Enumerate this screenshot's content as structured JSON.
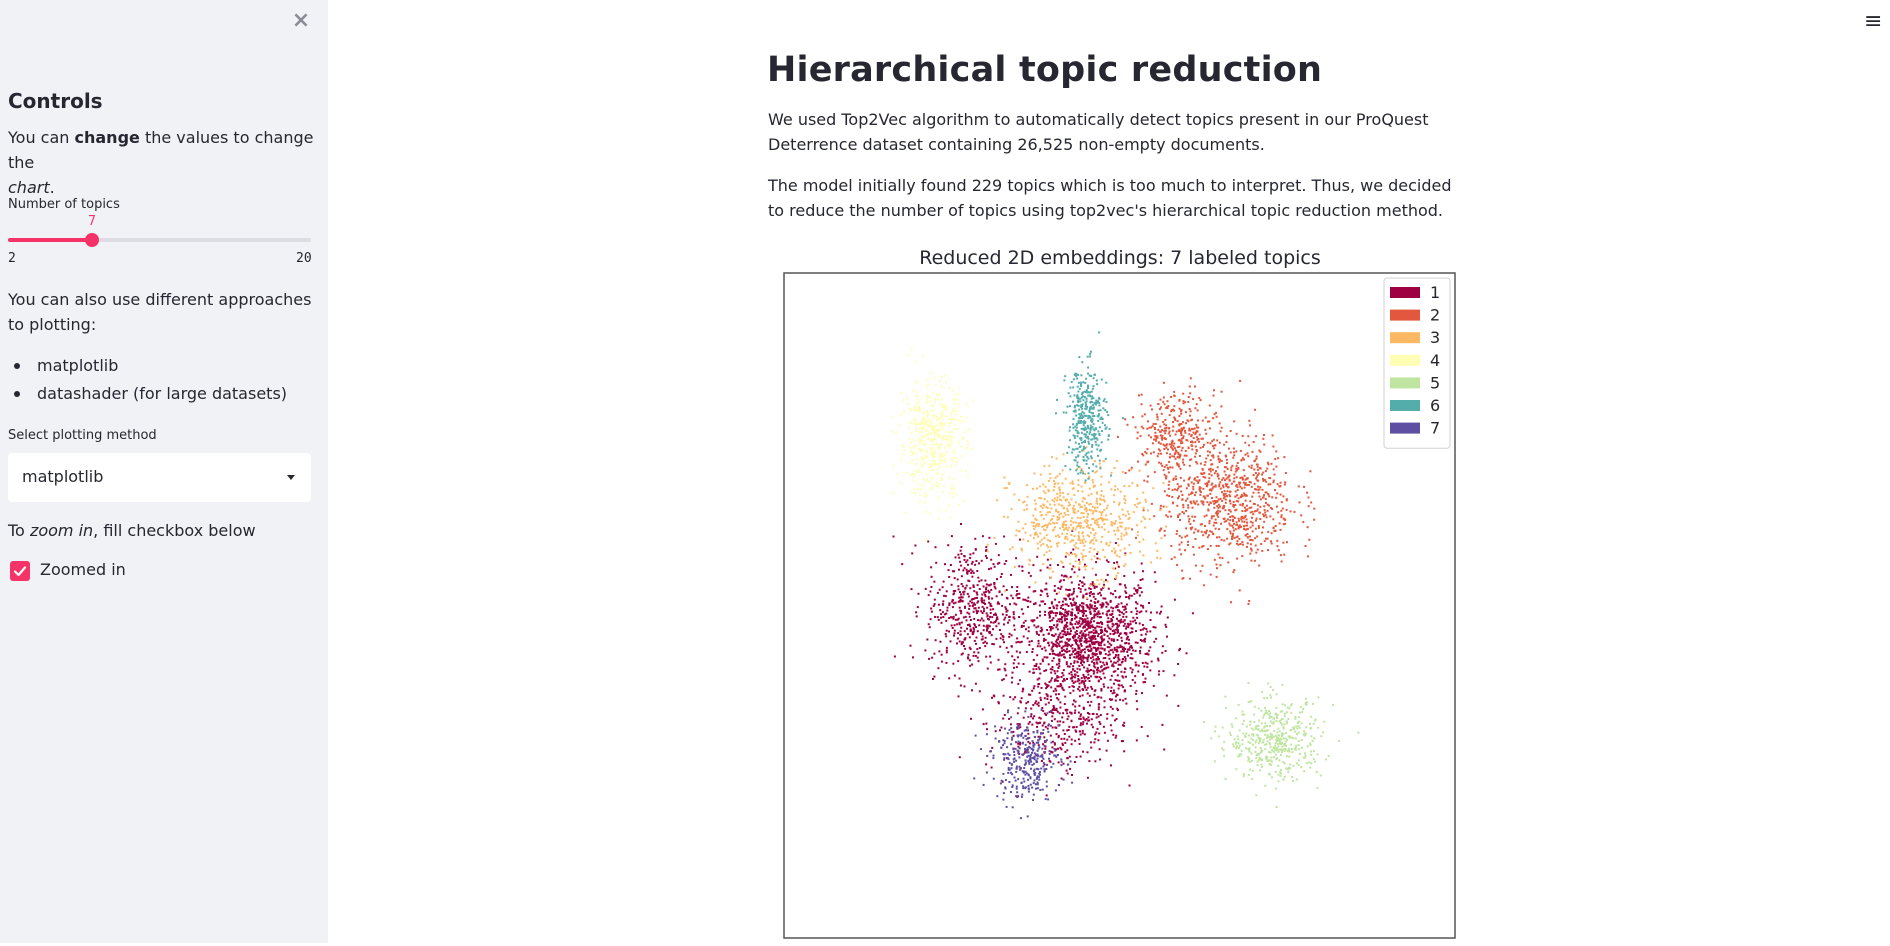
{
  "sidebar": {
    "close_icon": "close-icon",
    "title": "Controls",
    "intro_prefix": "You can ",
    "intro_bold": "change",
    "intro_mid": " the values to change the",
    "intro_italic": "chart",
    "intro_suffix": ".",
    "slider": {
      "label": "Number of topics",
      "value": 7,
      "value_text": "7",
      "min": 2,
      "min_text": "2",
      "max": 20,
      "max_text": "20"
    },
    "approaches_text": "You can also use different approaches to plotting:",
    "approaches": [
      "matplotlib",
      "datashader (for large datasets)"
    ],
    "select_label": "Select plotting method",
    "select_value": "matplotlib",
    "zoom_prefix": "To ",
    "zoom_italic": "zoom in",
    "zoom_suffix": ", fill checkbox below",
    "checkbox_label": "Zoomed in",
    "checkbox_checked": true
  },
  "header": {
    "menu_icon": "hamburger-menu-icon"
  },
  "main": {
    "title": "Hierarchical topic reduction",
    "p1": "We used Top2Vec algorithm to automatically detect topics present in our ProQuest Deterrence dataset containing 26,525 non-empty documents.",
    "p2": "The model initially found 229 topics which is too much to interpret. Thus, we decided to reduce the number of topics using top2vec's hierarchical topic reduction method."
  },
  "colors": {
    "accent": "#f63366",
    "sidebar_bg": "#f0f2f6"
  },
  "chart_data": {
    "type": "scatter",
    "title": "Reduced 2D embeddings: 7 labeled topics",
    "xlabel": "",
    "ylabel": "",
    "grid": false,
    "legend_position": "top-right",
    "series": [
      {
        "name": "1",
        "color": "#9e0142",
        "clusters": [
          {
            "cx": 0.45,
            "cy": 0.45,
            "rx": 0.1,
            "ry": 0.1,
            "n": 1400
          },
          {
            "cx": 0.28,
            "cy": 0.5,
            "rx": 0.07,
            "ry": 0.1,
            "n": 500
          },
          {
            "cx": 0.4,
            "cy": 0.32,
            "rx": 0.1,
            "ry": 0.07,
            "n": 300
          }
        ]
      },
      {
        "name": "2",
        "color": "#e2573d",
        "clusters": [
          {
            "cx": 0.66,
            "cy": 0.66,
            "rx": 0.1,
            "ry": 0.1,
            "n": 800
          },
          {
            "cx": 0.58,
            "cy": 0.76,
            "rx": 0.06,
            "ry": 0.06,
            "n": 300
          }
        ]
      },
      {
        "name": "3",
        "color": "#fdb863",
        "clusters": [
          {
            "cx": 0.44,
            "cy": 0.63,
            "rx": 0.1,
            "ry": 0.08,
            "n": 600
          }
        ]
      },
      {
        "name": "4",
        "color": "#fefeb4",
        "clusters": [
          {
            "cx": 0.22,
            "cy": 0.75,
            "rx": 0.05,
            "ry": 0.09,
            "n": 450
          }
        ]
      },
      {
        "name": "5",
        "color": "#bfe5a0",
        "clusters": [
          {
            "cx": 0.73,
            "cy": 0.3,
            "rx": 0.07,
            "ry": 0.06,
            "n": 450
          }
        ]
      },
      {
        "name": "6",
        "color": "#53adab",
        "clusters": [
          {
            "cx": 0.45,
            "cy": 0.78,
            "rx": 0.03,
            "ry": 0.08,
            "n": 350
          }
        ]
      },
      {
        "name": "7",
        "color": "#5e4fa2",
        "clusters": [
          {
            "cx": 0.36,
            "cy": 0.27,
            "rx": 0.05,
            "ry": 0.06,
            "n": 300
          }
        ]
      }
    ],
    "xlim": [
      0,
      1
    ],
    "ylim": [
      0,
      1
    ]
  }
}
